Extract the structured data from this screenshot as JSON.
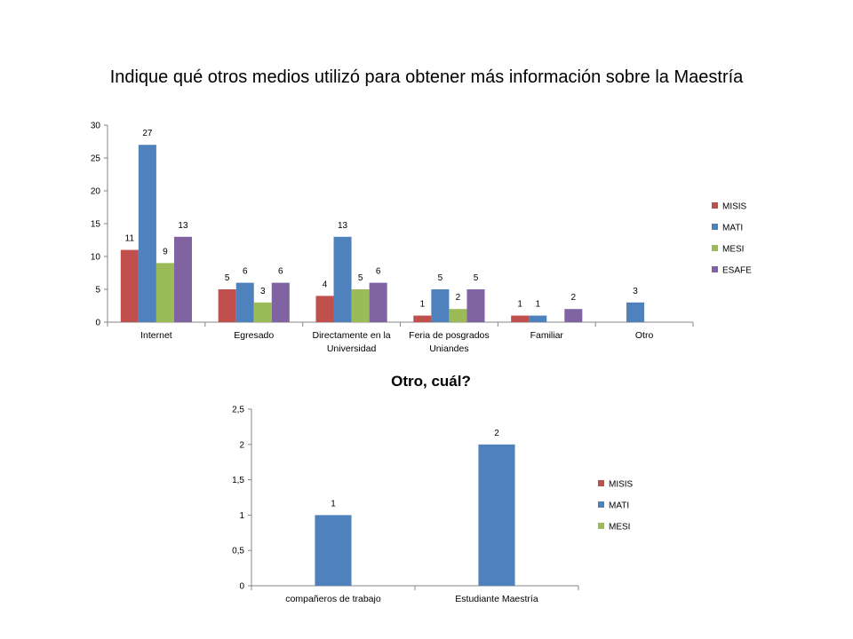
{
  "slide": {
    "title": "Indique qué otros medios utilizó para obtener más información sobre la Maestría"
  },
  "colors": {
    "MISIS": "#c0504d",
    "MATI": "#4f81bd",
    "MESI": "#9bbb59",
    "ESAFE": "#8064a2"
  },
  "chart_data": [
    {
      "type": "bar",
      "title": "Indique qué otros medios utilizó para obtener más información sobre la Maestría",
      "categories": [
        [
          "Internet"
        ],
        [
          "Egresado"
        ],
        [
          "Directamente en la",
          "Universidad"
        ],
        [
          "Feria de posgrados",
          "Uniandes"
        ],
        [
          "Familiar"
        ],
        [
          "Otro"
        ]
      ],
      "series": [
        {
          "name": "MISIS",
          "values": [
            11,
            5,
            4,
            1,
            1,
            null
          ]
        },
        {
          "name": "MATI",
          "values": [
            27,
            6,
            13,
            5,
            1,
            3
          ]
        },
        {
          "name": "MESI",
          "values": [
            9,
            3,
            5,
            2,
            null,
            null
          ]
        },
        {
          "name": "ESAFE",
          "values": [
            13,
            6,
            6,
            5,
            2,
            null
          ]
        }
      ],
      "ylim": [
        0,
        30
      ],
      "yticks": [
        "0",
        "5",
        "10",
        "15",
        "20",
        "25",
        "30"
      ],
      "grid": false,
      "legend": "right"
    },
    {
      "type": "bar",
      "title": "Otro, cuál?",
      "categories": [
        [
          "compañeros de trabajo"
        ],
        [
          "Estudiante Maestría"
        ]
      ],
      "series": [
        {
          "name": "MISIS",
          "values": [
            null,
            null
          ]
        },
        {
          "name": "MATI",
          "values": [
            1,
            2
          ]
        },
        {
          "name": "MESI",
          "values": [
            null,
            null
          ]
        }
      ],
      "ylim": [
        0,
        2.5
      ],
      "yticks": [
        "0",
        "0,5",
        "1",
        "1,5",
        "2",
        "2,5"
      ],
      "grid": false,
      "legend": "right"
    }
  ]
}
